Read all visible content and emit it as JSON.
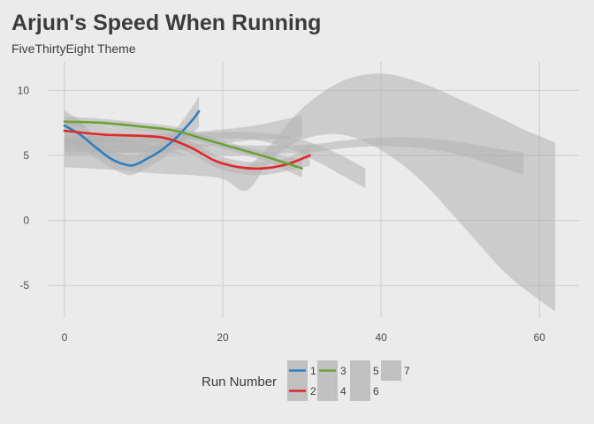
{
  "title": "Arjun's Speed When Running",
  "subtitle": "FiveThirtyEight Theme",
  "chart_data": {
    "type": "line",
    "title": "Arjun's Speed When Running",
    "subtitle": "FiveThirtyEight Theme",
    "xlim": [
      -2,
      65
    ],
    "ylim": [
      -7.5,
      12.2
    ],
    "x_ticks": [
      0,
      20,
      40,
      60
    ],
    "y_ticks": [
      -5,
      0,
      5,
      10
    ],
    "grid": true,
    "legend": {
      "title": "Run Number",
      "placement": "bottom",
      "entries": [
        "1",
        "2",
        "3",
        "4",
        "5",
        "6",
        "7"
      ]
    },
    "colors": {
      "1": "#2c7fc1",
      "2": "#e3262a",
      "3": "#6aa335",
      "ribbon": "#b3b3b3",
      "grid": "#cbcbcb",
      "background": "#ebebeb"
    },
    "series": [
      {
        "name": "1",
        "color": "#2c7fc1",
        "x": [
          0,
          2,
          4,
          6,
          8,
          9,
          10,
          12,
          14,
          16,
          17
        ],
        "y": [
          7.3,
          6.6,
          5.6,
          4.7,
          4.25,
          4.3,
          4.6,
          5.3,
          6.3,
          7.6,
          8.4
        ],
        "band_x": [
          0,
          2,
          4,
          6,
          8,
          9,
          10,
          12,
          14,
          16,
          17
        ],
        "band_lower": [
          6.1,
          5.6,
          4.8,
          4.0,
          3.5,
          3.6,
          3.9,
          4.6,
          5.6,
          6.6,
          7.2
        ],
        "band_upper": [
          8.5,
          7.6,
          6.4,
          5.4,
          5.0,
          5.0,
          5.3,
          6.0,
          7.0,
          8.6,
          9.6
        ]
      },
      {
        "name": "2",
        "color": "#e3262a",
        "x": [
          0,
          5,
          10,
          13,
          16,
          19,
          22,
          25,
          28,
          31
        ],
        "y": [
          6.9,
          6.6,
          6.5,
          6.3,
          5.6,
          4.6,
          4.1,
          4.0,
          4.3,
          5.0
        ],
        "band_x": [
          0,
          5,
          10,
          13,
          16,
          19,
          22,
          25,
          28,
          31
        ],
        "band_lower": [
          6.2,
          6.0,
          6.0,
          5.9,
          5.1,
          4.1,
          3.6,
          3.5,
          3.8,
          4.2
        ],
        "band_upper": [
          7.6,
          7.2,
          7.0,
          6.8,
          6.1,
          5.1,
          4.6,
          4.5,
          4.8,
          5.8
        ]
      },
      {
        "name": "3",
        "color": "#6aa335",
        "x": [
          0,
          5,
          10,
          14,
          18,
          22,
          26,
          30
        ],
        "y": [
          7.6,
          7.5,
          7.2,
          6.9,
          6.2,
          5.5,
          4.8,
          4.0
        ],
        "band_x": [
          0,
          5,
          10,
          14,
          18,
          22,
          26,
          30
        ],
        "band_lower": [
          7.2,
          7.2,
          6.9,
          6.6,
          5.9,
          5.2,
          4.4,
          3.3
        ],
        "band_upper": [
          8.0,
          7.8,
          7.5,
          7.2,
          6.5,
          5.8,
          5.2,
          4.7
        ]
      },
      {
        "name": "4",
        "band_x": [
          0,
          6,
          12,
          16,
          20,
          24,
          28,
          32,
          35,
          38
        ],
        "band_lower": [
          5.8,
          6.0,
          6.1,
          6.2,
          6.3,
          6.2,
          5.6,
          4.5,
          3.5,
          2.5
        ],
        "band_upper": [
          6.4,
          6.6,
          6.6,
          6.7,
          6.8,
          6.8,
          6.5,
          5.8,
          5.0,
          4.0
        ]
      },
      {
        "name": "5",
        "band_x": [
          0,
          4,
          8,
          12,
          16,
          20,
          24,
          28,
          30
        ],
        "band_lower": [
          5.0,
          5.1,
          5.2,
          5.3,
          5.5,
          5.9,
          6.2,
          6.3,
          6.4
        ],
        "band_upper": [
          6.4,
          6.5,
          6.6,
          6.7,
          6.8,
          7.0,
          7.3,
          7.8,
          8.1
        ]
      },
      {
        "name": "6",
        "band_x": [
          0,
          10,
          20,
          30,
          36,
          42,
          48,
          54,
          58
        ],
        "band_lower": [
          5.3,
          5.2,
          5.0,
          5.2,
          5.6,
          5.7,
          5.3,
          4.3,
          3.5
        ],
        "band_upper": [
          6.2,
          6.1,
          5.8,
          5.8,
          6.2,
          6.4,
          6.2,
          5.6,
          5.2
        ]
      },
      {
        "name": "7",
        "band_x": [
          0,
          6,
          12,
          16,
          20,
          23,
          26,
          30,
          35,
          40,
          45,
          50,
          55,
          58,
          62
        ],
        "band_lower": [
          4.1,
          3.9,
          3.6,
          3.5,
          3.2,
          2.3,
          4.5,
          6.2,
          6.6,
          5.4,
          3.1,
          -0.2,
          -3.6,
          -5.2,
          -7.0
        ],
        "band_upper": [
          6.6,
          6.3,
          5.7,
          5.0,
          4.6,
          4.2,
          5.8,
          8.6,
          10.7,
          11.3,
          10.6,
          9.3,
          7.9,
          7.0,
          6.0
        ]
      }
    ]
  }
}
